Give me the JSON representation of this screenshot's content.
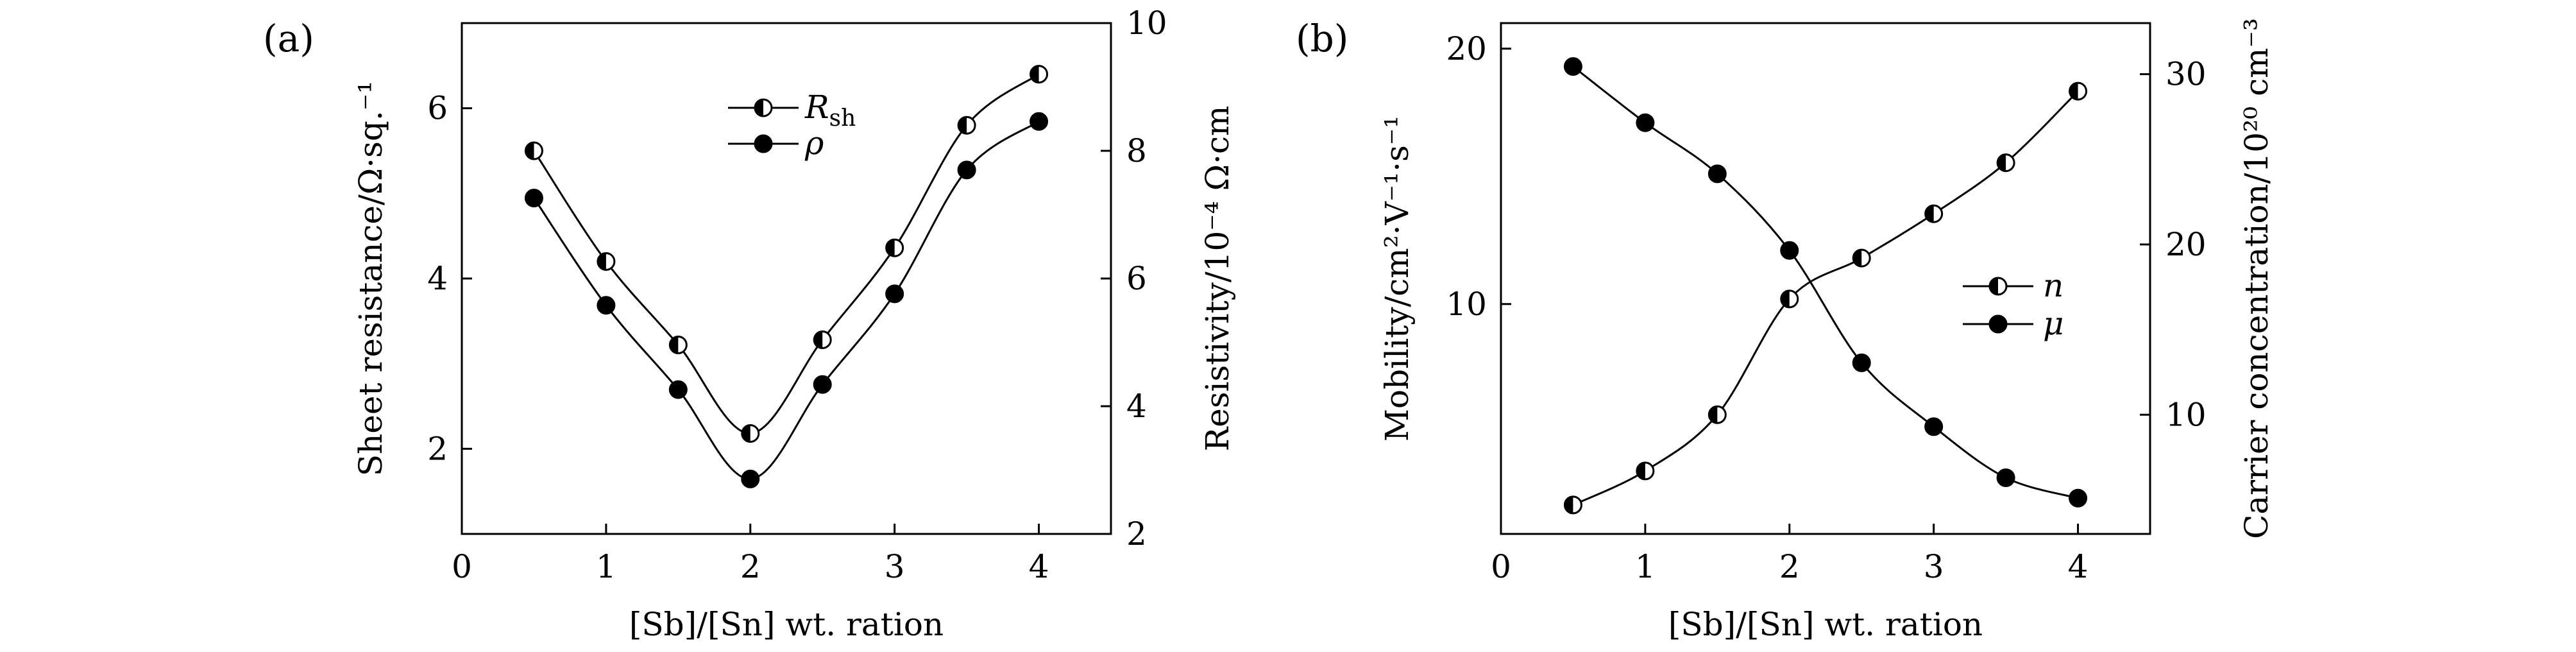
{
  "chart_data": [
    {
      "panel": "(a)",
      "type": "line",
      "xlabel": "[Sb]/[Sn] wt. ration",
      "ylabel": "Sheet resistance/Ω·sq.⁻¹",
      "y2label": "Resistivity/10⁻⁴ Ω·cm",
      "xlim": [
        0,
        4.5
      ],
      "ylim": [
        1,
        7
      ],
      "y2lim": [
        2,
        10
      ],
      "xticks": [
        "0",
        "1",
        "2",
        "3",
        "4"
      ],
      "yticks": [
        "2",
        "4",
        "6"
      ],
      "y2ticks": [
        "2",
        "4",
        "6",
        "8",
        "10"
      ],
      "x": [
        0.5,
        1.0,
        1.5,
        2.0,
        2.5,
        3.0,
        3.5,
        4.0
      ],
      "series": [
        {
          "name": "R_sh",
          "label_main": "R",
          "label_sub": "sh",
          "axis": "left",
          "marker": "half-filled",
          "values": [
            5.5,
            4.2,
            3.22,
            2.18,
            3.28,
            4.36,
            5.8,
            6.4
          ]
        },
        {
          "name": "ρ",
          "axis": "right",
          "marker": "filled",
          "values": [
            7.26,
            5.58,
            4.26,
            2.86,
            4.34,
            5.76,
            7.7,
            8.46
          ]
        }
      ],
      "legend_position": "top-center",
      "grid": false
    },
    {
      "panel": "(b)",
      "type": "line",
      "xlabel": "[Sb]/[Sn] wt. ration",
      "ylabel": "Mobility/cm²·V⁻¹·s⁻¹",
      "y2label": "Carrier concentration/10²⁰ cm⁻³",
      "xlim": [
        0,
        4.5
      ],
      "ylim": [
        1,
        21
      ],
      "y2lim": [
        3,
        33
      ],
      "xticks": [
        "0",
        "1",
        "2",
        "3",
        "4"
      ],
      "yticks": [
        "10",
        "20"
      ],
      "y2ticks": [
        "10",
        "20",
        "30"
      ],
      "x": [
        0.5,
        1.0,
        1.5,
        2.0,
        2.5,
        3.0,
        3.5,
        4.0
      ],
      "series": [
        {
          "name": "n",
          "axis": "right",
          "marker": "half-filled",
          "values": [
            4.7,
            6.7,
            10.0,
            16.8,
            19.2,
            21.8,
            24.8,
            29.0
          ]
        },
        {
          "name": "μ",
          "axis": "left",
          "marker": "filled",
          "values": [
            19.3,
            17.1,
            15.1,
            12.1,
            7.7,
            5.2,
            3.2,
            2.4
          ]
        }
      ],
      "legend_position": "center-right",
      "grid": false
    }
  ]
}
